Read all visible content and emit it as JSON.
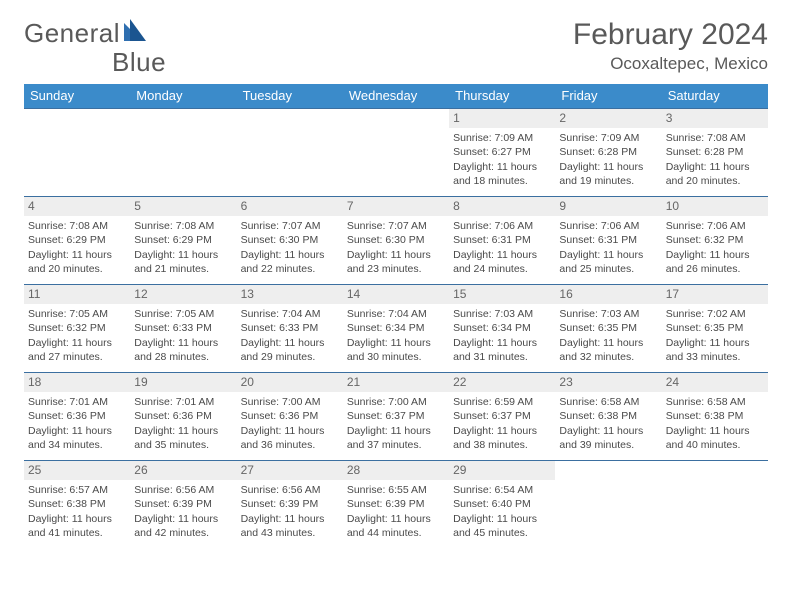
{
  "brand": {
    "word1": "General",
    "word2": "Blue"
  },
  "title": "February 2024",
  "location": "Ocoxaltepec, Mexico",
  "colors": {
    "header_bg": "#3b8bca",
    "header_text": "#ffffff",
    "row_border": "#3b6fa0",
    "daynum_bg": "#eeeeee",
    "text": "#4a4a4a",
    "title_text": "#595959",
    "logo_blue": "#2f6fb0"
  },
  "daysOfWeek": [
    "Sunday",
    "Monday",
    "Tuesday",
    "Wednesday",
    "Thursday",
    "Friday",
    "Saturday"
  ],
  "startOffset": 4,
  "days": [
    {
      "n": 1,
      "sunrise": "7:09 AM",
      "sunset": "6:27 PM",
      "dlh": 11,
      "dlm": 18
    },
    {
      "n": 2,
      "sunrise": "7:09 AM",
      "sunset": "6:28 PM",
      "dlh": 11,
      "dlm": 19
    },
    {
      "n": 3,
      "sunrise": "7:08 AM",
      "sunset": "6:28 PM",
      "dlh": 11,
      "dlm": 20
    },
    {
      "n": 4,
      "sunrise": "7:08 AM",
      "sunset": "6:29 PM",
      "dlh": 11,
      "dlm": 20
    },
    {
      "n": 5,
      "sunrise": "7:08 AM",
      "sunset": "6:29 PM",
      "dlh": 11,
      "dlm": 21
    },
    {
      "n": 6,
      "sunrise": "7:07 AM",
      "sunset": "6:30 PM",
      "dlh": 11,
      "dlm": 22
    },
    {
      "n": 7,
      "sunrise": "7:07 AM",
      "sunset": "6:30 PM",
      "dlh": 11,
      "dlm": 23
    },
    {
      "n": 8,
      "sunrise": "7:06 AM",
      "sunset": "6:31 PM",
      "dlh": 11,
      "dlm": 24
    },
    {
      "n": 9,
      "sunrise": "7:06 AM",
      "sunset": "6:31 PM",
      "dlh": 11,
      "dlm": 25
    },
    {
      "n": 10,
      "sunrise": "7:06 AM",
      "sunset": "6:32 PM",
      "dlh": 11,
      "dlm": 26
    },
    {
      "n": 11,
      "sunrise": "7:05 AM",
      "sunset": "6:32 PM",
      "dlh": 11,
      "dlm": 27
    },
    {
      "n": 12,
      "sunrise": "7:05 AM",
      "sunset": "6:33 PM",
      "dlh": 11,
      "dlm": 28
    },
    {
      "n": 13,
      "sunrise": "7:04 AM",
      "sunset": "6:33 PM",
      "dlh": 11,
      "dlm": 29
    },
    {
      "n": 14,
      "sunrise": "7:04 AM",
      "sunset": "6:34 PM",
      "dlh": 11,
      "dlm": 30
    },
    {
      "n": 15,
      "sunrise": "7:03 AM",
      "sunset": "6:34 PM",
      "dlh": 11,
      "dlm": 31
    },
    {
      "n": 16,
      "sunrise": "7:03 AM",
      "sunset": "6:35 PM",
      "dlh": 11,
      "dlm": 32
    },
    {
      "n": 17,
      "sunrise": "7:02 AM",
      "sunset": "6:35 PM",
      "dlh": 11,
      "dlm": 33
    },
    {
      "n": 18,
      "sunrise": "7:01 AM",
      "sunset": "6:36 PM",
      "dlh": 11,
      "dlm": 34
    },
    {
      "n": 19,
      "sunrise": "7:01 AM",
      "sunset": "6:36 PM",
      "dlh": 11,
      "dlm": 35
    },
    {
      "n": 20,
      "sunrise": "7:00 AM",
      "sunset": "6:36 PM",
      "dlh": 11,
      "dlm": 36
    },
    {
      "n": 21,
      "sunrise": "7:00 AM",
      "sunset": "6:37 PM",
      "dlh": 11,
      "dlm": 37
    },
    {
      "n": 22,
      "sunrise": "6:59 AM",
      "sunset": "6:37 PM",
      "dlh": 11,
      "dlm": 38
    },
    {
      "n": 23,
      "sunrise": "6:58 AM",
      "sunset": "6:38 PM",
      "dlh": 11,
      "dlm": 39
    },
    {
      "n": 24,
      "sunrise": "6:58 AM",
      "sunset": "6:38 PM",
      "dlh": 11,
      "dlm": 40
    },
    {
      "n": 25,
      "sunrise": "6:57 AM",
      "sunset": "6:38 PM",
      "dlh": 11,
      "dlm": 41
    },
    {
      "n": 26,
      "sunrise": "6:56 AM",
      "sunset": "6:39 PM",
      "dlh": 11,
      "dlm": 42
    },
    {
      "n": 27,
      "sunrise": "6:56 AM",
      "sunset": "6:39 PM",
      "dlh": 11,
      "dlm": 43
    },
    {
      "n": 28,
      "sunrise": "6:55 AM",
      "sunset": "6:39 PM",
      "dlh": 11,
      "dlm": 44
    },
    {
      "n": 29,
      "sunrise": "6:54 AM",
      "sunset": "6:40 PM",
      "dlh": 11,
      "dlm": 45
    }
  ],
  "labels": {
    "sunrise": "Sunrise:",
    "sunset": "Sunset:",
    "daylight_prefix": "Daylight:",
    "hours_word": "hours",
    "and_word": "and",
    "minutes_word": "minutes."
  }
}
